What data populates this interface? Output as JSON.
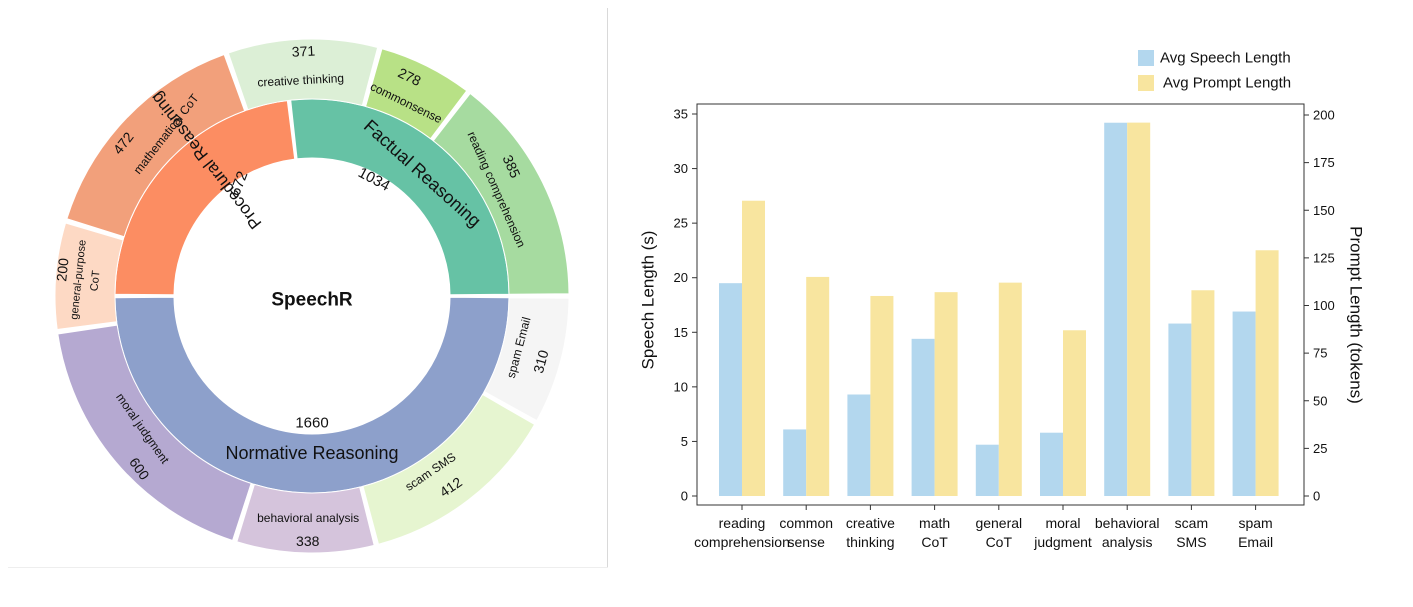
{
  "chart_data": [
    {
      "type": "sunburst",
      "center_label": "SpeechR",
      "inner": [
        {
          "name": "Factual Reasoning",
          "value": 1034,
          "color": "#66c2a5"
        },
        {
          "name": "Normative Reasoning",
          "value": 1660,
          "color": "#8da0cb"
        },
        {
          "name": "Procedural Reasoning",
          "value": 672,
          "color": "#fc8d62"
        }
      ],
      "outer": [
        {
          "name": "commonsense",
          "value": 278,
          "parent": "Factual Reasoning",
          "color": "#b8e186"
        },
        {
          "name": "reading comprehension",
          "value": 385,
          "parent": "Factual Reasoning",
          "color": "#a6dba0"
        },
        {
          "name": "spam Email",
          "value": 310,
          "parent": "Normative Reasoning",
          "color": "#f5f5f5"
        },
        {
          "name": "scam SMS",
          "value": 412,
          "parent": "Normative Reasoning",
          "color": "#e6f5d0"
        },
        {
          "name": "behavioral analysis",
          "value": 338,
          "parent": "Normative Reasoning",
          "color": "#d5c4dc"
        },
        {
          "name": "moral judgment",
          "value": 600,
          "parent": "Normative Reasoning",
          "color": "#b5a9d1"
        },
        {
          "name": "general-purpose CoT",
          "value": 200,
          "parent": "Procedural Reasoning",
          "color": "#fdd9c4"
        },
        {
          "name": "mathematical CoT",
          "value": 472,
          "parent": "Procedural Reasoning",
          "color": "#f2a07b"
        },
        {
          "name": "creative thinking",
          "value": 371,
          "parent": "Factual Reasoning",
          "color": "#dcefd6"
        }
      ]
    },
    {
      "type": "bar",
      "categories": [
        "reading comprehension",
        "common sense",
        "creative thinking",
        "math CoT",
        "general CoT",
        "moral judgment",
        "behavioral analysis",
        "scam SMS",
        "spam Email"
      ],
      "series": [
        {
          "name": "Avg Speech Length",
          "axis": "left",
          "color": "#b3d7ee",
          "values": [
            19.5,
            6.1,
            9.3,
            14.4,
            4.7,
            5.8,
            34.2,
            15.8,
            16.9
          ]
        },
        {
          "name": "Avg Prompt Length",
          "axis": "right",
          "color": "#f8e59f",
          "values": [
            155,
            115,
            105,
            107,
            112,
            87,
            196,
            108,
            129
          ]
        }
      ],
      "ylabel": "Speech Length (s)",
      "y2label": "Prompt Length (tokens)",
      "ylim": [
        0,
        35.8
      ],
      "y2lim": [
        0,
        204.6
      ],
      "yticks": [
        0,
        5,
        10,
        15,
        20,
        25,
        30,
        35
      ],
      "y2ticks": [
        0,
        25,
        50,
        75,
        100,
        125,
        150,
        175,
        200
      ],
      "legend_position": "top-right"
    }
  ]
}
